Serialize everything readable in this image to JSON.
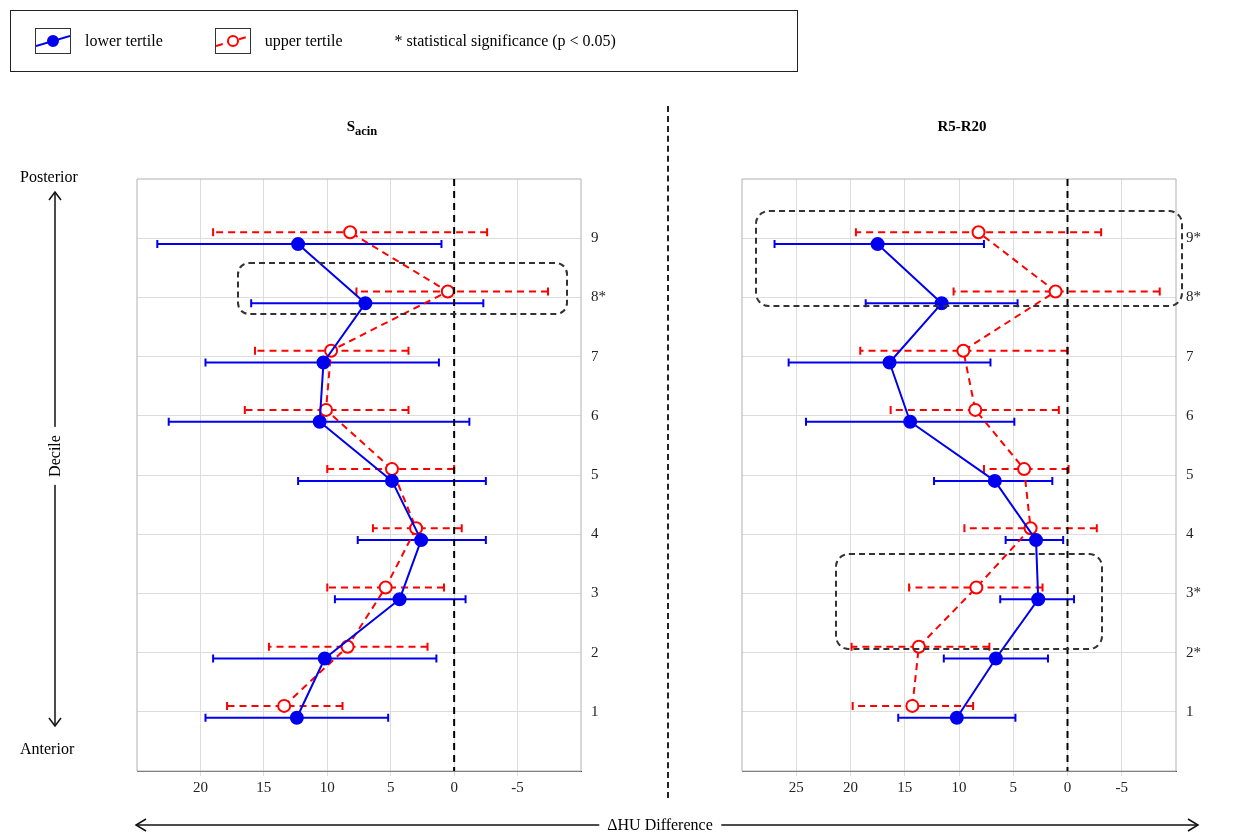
{
  "chart_data": [
    {
      "type": "line",
      "title": "S$_{acin}$",
      "xlabel": "ΔHU Difference",
      "ylabel": "Decile",
      "annotations": [
        "Posterior",
        "Anterior",
        "* statistical significance (p < 0.05)"
      ],
      "legend": "top left",
      "grid": true,
      "xlim": [
        25,
        -10
      ],
      "xticks": [
        20,
        15,
        10,
        5,
        0,
        -5
      ],
      "ylim": [
        0,
        10
      ],
      "yticks": [
        1,
        2,
        3,
        4,
        5,
        6,
        7,
        {
          "value": 8,
          "label": "8*"
        },
        9
      ],
      "ref_lines": [
        {
          "axis": "x",
          "value": 0,
          "color": "#000000",
          "line_style": "dashed"
        }
      ],
      "series": [
        {
          "name": "lower tertile",
          "color": "#0000ee",
          "line_style": "solid",
          "marker": "circle",
          "x": [
            12.4,
            10.2,
            4.3,
            2.6,
            4.9,
            10.6,
            10.3,
            7.0,
            12.3
          ],
          "values": [
            0.9,
            1.9,
            2.9,
            3.9,
            4.9,
            5.9,
            6.9,
            7.9,
            8.9
          ],
          "xerrors": [
            [
              5.2,
              19.6
            ],
            [
              1.4,
              19.0
            ],
            [
              -0.9,
              9.4
            ],
            [
              -2.5,
              7.6
            ],
            [
              -2.5,
              12.3
            ],
            [
              -1.2,
              22.5
            ],
            [
              1.2,
              19.6
            ],
            [
              -2.3,
              16.0
            ],
            [
              1.0,
              23.4
            ]
          ]
        },
        {
          "name": "upper tertile",
          "color": "#ff0000",
          "line_style": "dashed",
          "marker": "circle",
          "x": [
            13.4,
            8.4,
            5.4,
            3.0,
            4.9,
            10.1,
            9.7,
            0.5,
            8.2
          ],
          "values": [
            1.1,
            2.1,
            3.1,
            4.1,
            5.1,
            6.1,
            7.1,
            8.1,
            9.1
          ],
          "xerrors": [
            [
              8.8,
              17.9
            ],
            [
              2.1,
              14.6
            ],
            [
              0.8,
              10.0
            ],
            [
              -0.6,
              6.4
            ],
            [
              0.0,
              10.0
            ],
            [
              3.6,
              16.5
            ],
            [
              3.6,
              15.7
            ],
            [
              -7.4,
              7.7
            ],
            [
              -2.6,
              19.0
            ]
          ]
        }
      ]
    },
    {
      "type": "line",
      "title": "R5-R20",
      "grid": true,
      "xlim": [
        30,
        -10
      ],
      "xticks": [
        25,
        20,
        15,
        10,
        5,
        0,
        -5
      ],
      "ylim": [
        0,
        10
      ],
      "yticks": [
        1,
        {
          "value": 2,
          "label": "2*"
        },
        {
          "value": 3,
          "label": "3*"
        },
        4,
        5,
        6,
        7,
        {
          "value": 8,
          "label": "8*"
        },
        {
          "value": 9,
          "label": "9*"
        }
      ],
      "ref_lines": [
        {
          "axis": "x",
          "value": 0,
          "color": "#000000",
          "line_style": "dashed"
        }
      ],
      "series": [
        {
          "color": "#0000ee",
          "line_style": "solid",
          "marker": "circle",
          "x": [
            10.2,
            6.6,
            2.7,
            2.9,
            6.7,
            14.5,
            16.4,
            11.6,
            17.5
          ],
          "values": [
            0.9,
            1.9,
            2.9,
            3.9,
            4.9,
            5.9,
            6.9,
            7.9,
            8.9
          ],
          "xerrors": [
            [
              4.8,
              15.6
            ],
            [
              1.8,
              11.4
            ],
            [
              -0.6,
              6.2
            ],
            [
              0.4,
              5.7
            ],
            [
              1.4,
              12.3
            ],
            [
              4.9,
              24.1
            ],
            [
              7.1,
              25.7
            ],
            [
              4.6,
              18.6
            ],
            [
              7.7,
              27.0
            ]
          ]
        },
        {
          "color": "#ff0000",
          "line_style": "dashed",
          "marker": "circle",
          "x": [
            14.3,
            13.7,
            8.4,
            3.4,
            4.0,
            8.5,
            9.6,
            1.1,
            8.2
          ],
          "values": [
            1.1,
            2.1,
            3.1,
            4.1,
            5.1,
            6.1,
            7.1,
            8.1,
            9.1
          ],
          "xerrors": [
            [
              8.7,
              19.8
            ],
            [
              7.2,
              19.9
            ],
            [
              2.3,
              14.6
            ],
            [
              -2.7,
              9.5
            ],
            [
              -0.1,
              7.7
            ],
            [
              0.8,
              16.3
            ],
            [
              0.0,
              19.1
            ],
            [
              -8.5,
              10.5
            ],
            [
              -3.1,
              19.5
            ]
          ]
        }
      ]
    }
  ]
}
